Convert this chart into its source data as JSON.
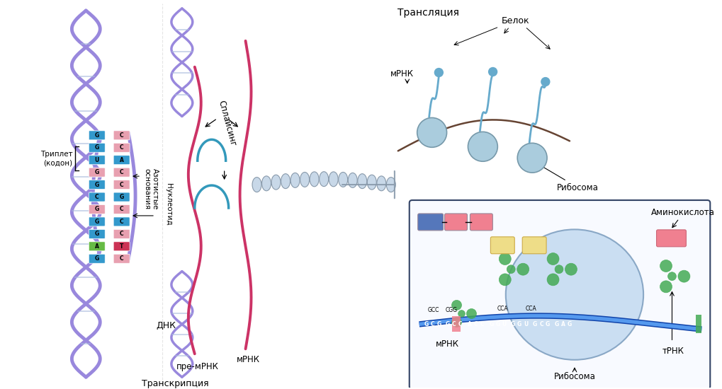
{
  "bg_color": "#ffffff",
  "labels": {
    "triplet": "Триплет\n(кодон)",
    "azot": "Азотистые\nоснования",
    "nukleotid": "Нуклеотид",
    "dnk": "ДНК",
    "pre_mrna": "пре-мРНК",
    "splicing": "Сплайсинг",
    "transcription": "Транскрипция",
    "mrna_mid": "мРНК",
    "translation": "Трансляция",
    "mrna_top": "мРНК",
    "belok": "Белок",
    "ribosome_top": "Рибосома",
    "aminokislota": "Аминокислота",
    "mrna_bot": "мРНК",
    "trna": "тРНК",
    "ribosome_bot": "Рибосома"
  },
  "dna_bases_left": [
    "G",
    "G",
    "U",
    "G",
    "G",
    "C",
    "G",
    "G",
    "G",
    "A",
    "G"
  ],
  "dna_bases_right": [
    "C",
    "C",
    "A",
    "C",
    "C",
    "G",
    "C",
    "C",
    "C",
    "T",
    "C"
  ],
  "dna_colors_left": [
    "#3399cc",
    "#3399cc",
    "#3399cc",
    "#e8a0b0",
    "#3399cc",
    "#3399cc",
    "#e8a0b0",
    "#3399cc",
    "#3399cc",
    "#66bb44",
    "#3399cc"
  ],
  "dna_colors_right": [
    "#e8a0b0",
    "#e8a0b0",
    "#3399cc",
    "#e8a0b0",
    "#e8a0b0",
    "#3399cc",
    "#e8a0b0",
    "#3399cc",
    "#e8a0b0",
    "#cc3355",
    "#e8a0b0"
  ],
  "helix_color": "#9988dd",
  "pre_mrna_color": "#cc3366",
  "spliced_color": "#3399bb",
  "mrna_strand_color": "#2255aa",
  "ribosome_fill": "#c0d8f0",
  "ribosome_edge": "#7799bb",
  "trna_color": "#44aa55",
  "amino_yellow": "#eedd88",
  "amino_pink": "#f08090",
  "amino_blue": "#5577bb",
  "protein_color": "#66aacc",
  "box_fill": "#f8faff",
  "box_edge": "#334466",
  "bead_fill": "#c8d8e8",
  "bead_edge": "#8899aa",
  "arrow_fill": "#aabbcc",
  "arrow_edge": "#8899aa",
  "mrna_thread_color": "#664433"
}
